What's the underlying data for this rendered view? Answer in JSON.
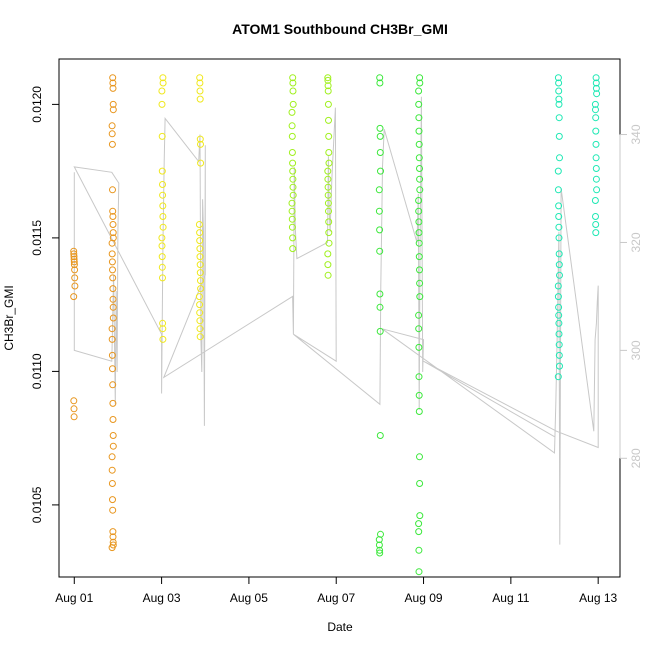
{
  "chart_data": {
    "type": "scatter",
    "title": "ATOM1 Southbound CH3Br_GMI",
    "xlabel": "Date",
    "ylabel": "CH3Br_GMI",
    "x_ticks": [
      {
        "day": 1,
        "label": "Aug 01"
      },
      {
        "day": 3,
        "label": "Aug 03"
      },
      {
        "day": 5,
        "label": "Aug 05"
      },
      {
        "day": 7,
        "label": "Aug 07"
      },
      {
        "day": 9,
        "label": "Aug 09"
      },
      {
        "day": 11,
        "label": "Aug 11"
      },
      {
        "day": 13,
        "label": "Aug 13"
      }
    ],
    "xlim": [
      0.65,
      13.5
    ],
    "y_ticks": [
      {
        "value": 0.0105,
        "label": "0.0105"
      },
      {
        "value": 0.011,
        "label": "0.0110"
      },
      {
        "value": 0.0115,
        "label": "0.0115"
      },
      {
        "value": 0.012,
        "label": "0.0120"
      }
    ],
    "ylim": [
      0.01023,
      0.01217
    ],
    "y2_ticks": [
      {
        "value": 280,
        "label": "280"
      },
      {
        "value": 300,
        "label": "300"
      },
      {
        "value": 320,
        "label": "320"
      },
      {
        "value": 340,
        "label": "340"
      }
    ],
    "y2lim": [
      258,
      354
    ],
    "grid": false,
    "series": [
      {
        "color": "#E8961E",
        "clusters": [
          {
            "x": 1.0,
            "values": [
              0.01145,
              0.01144,
              0.01143,
              0.01142,
              0.01141,
              0.0114,
              0.01138,
              0.01135,
              0.01132,
              0.01128,
              0.01089,
              0.01086,
              0.01083
            ]
          },
          {
            "x": 1.88,
            "values": [
              0.0121,
              0.01208,
              0.01206,
              0.012,
              0.01198,
              0.01192,
              0.01189,
              0.01185,
              0.01168,
              0.0116,
              0.01158,
              0.01155,
              0.01152,
              0.0115,
              0.01148,
              0.01144,
              0.01141,
              0.01138,
              0.01135,
              0.01131,
              0.01127,
              0.01124,
              0.0112,
              0.01116,
              0.01112,
              0.01106,
              0.01101,
              0.01095,
              0.01088,
              0.01082,
              0.01076,
              0.01072,
              0.01068,
              0.01063,
              0.01058,
              0.01052,
              0.01048,
              0.0104,
              0.01038,
              0.01036,
              0.01035,
              0.01034
            ]
          }
        ]
      },
      {
        "color": "#F0E81E",
        "clusters": [
          {
            "x": 3.02,
            "values": [
              0.0121,
              0.01208,
              0.01205,
              0.012,
              0.01188,
              0.01175,
              0.0117,
              0.01166,
              0.01162,
              0.01158,
              0.01154,
              0.0115,
              0.01147,
              0.01143,
              0.01139,
              0.01135,
              0.01118,
              0.01116,
              0.01112
            ]
          },
          {
            "x": 3.88,
            "values": [
              0.0121,
              0.01208,
              0.01205,
              0.01202,
              0.01187,
              0.01185,
              0.01178,
              0.01155,
              0.01152,
              0.01149,
              0.01146,
              0.01143,
              0.0114,
              0.01137,
              0.01134,
              0.01131,
              0.01128,
              0.01125,
              0.01122,
              0.01119,
              0.01116,
              0.01113
            ]
          }
        ]
      },
      {
        "color": "#A0F01E",
        "clusters": [
          {
            "x": 6.0,
            "values": [
              0.0121,
              0.01208,
              0.01205,
              0.012,
              0.01197,
              0.01192,
              0.01188,
              0.01182,
              0.01178,
              0.01175,
              0.01172,
              0.01169,
              0.01166,
              0.01163,
              0.0116,
              0.01157,
              0.01154,
              0.0115,
              0.01146
            ]
          },
          {
            "x": 6.82,
            "values": [
              0.0121,
              0.01209,
              0.01207,
              0.01205,
              0.012,
              0.01194,
              0.01188,
              0.01182,
              0.01178,
              0.01175,
              0.01172,
              0.01169,
              0.01166,
              0.01163,
              0.0116,
              0.01156,
              0.01152,
              0.01148,
              0.01144,
              0.0114,
              0.01136
            ]
          }
        ]
      },
      {
        "color": "#3CE83C",
        "clusters": [
          {
            "x": 8.0,
            "values": [
              0.0121,
              0.01208,
              0.01191,
              0.01188,
              0.01182,
              0.01175,
              0.01168,
              0.0116,
              0.01153,
              0.01145,
              0.01129,
              0.01124,
              0.01115,
              0.01076,
              0.01039,
              0.01037,
              0.01035,
              0.01033,
              0.01032
            ]
          },
          {
            "x": 8.9,
            "values": [
              0.0121,
              0.01208,
              0.01205,
              0.012,
              0.01195,
              0.0119,
              0.01185,
              0.0118,
              0.01176,
              0.01172,
              0.01168,
              0.01164,
              0.0116,
              0.01156,
              0.01152,
              0.01148,
              0.01143,
              0.01138,
              0.01133,
              0.01128,
              0.01121,
              0.01116,
              0.01109,
              0.01098,
              0.01091,
              0.01085,
              0.01068,
              0.01058,
              0.01046,
              0.01043,
              0.0104,
              0.01033,
              0.01025
            ]
          }
        ]
      },
      {
        "color": "#1EE8B4",
        "clusters": [
          {
            "x": 12.1,
            "values": [
              0.0121,
              0.01208,
              0.01205,
              0.01202,
              0.012,
              0.01195,
              0.01188,
              0.0118,
              0.01175,
              0.01168,
              0.01162,
              0.01158,
              0.01154,
              0.0115,
              0.01144,
              0.0114,
              0.01136,
              0.01132,
              0.01128,
              0.01124,
              0.01121,
              0.01118,
              0.01114,
              0.0111,
              0.01106,
              0.01102,
              0.01098
            ]
          },
          {
            "x": 12.95,
            "values": [
              0.0121,
              0.01208,
              0.01206,
              0.01204,
              0.012,
              0.01198,
              0.01195,
              0.0119,
              0.01185,
              0.0118,
              0.01176,
              0.01172,
              0.01168,
              0.01164,
              0.01158,
              0.01155,
              0.01152
            ]
          }
        ]
      }
    ],
    "altitude_line": {
      "color": "#c8c8c8",
      "axis": "right",
      "points": [
        [
          1.0,
          333
        ],
        [
          1.0,
          300
        ],
        [
          1.86,
          298
        ],
        [
          1.9,
          314
        ],
        [
          1.94,
          290
        ],
        [
          1.95,
          303
        ],
        [
          1.96,
          311
        ],
        [
          1.98,
          296
        ],
        [
          2.0,
          322
        ],
        [
          2.02,
          331
        ],
        [
          1.86,
          333
        ],
        [
          1.0,
          334
        ],
        [
          3.0,
          303
        ],
        [
          3.0,
          292
        ],
        [
          3.03,
          319
        ],
        [
          3.06,
          335
        ],
        [
          3.08,
          343
        ],
        [
          3.85,
          335
        ],
        [
          3.88,
          340
        ],
        [
          3.9,
          302
        ],
        [
          3.92,
          296
        ],
        [
          3.94,
          328
        ],
        [
          3.96,
          322
        ],
        [
          3.98,
          286
        ],
        [
          4.0,
          338
        ],
        [
          4.0,
          314
        ],
        [
          3.05,
          295
        ],
        [
          6.0,
          310
        ],
        [
          6.02,
          303
        ],
        [
          6.04,
          334
        ],
        [
          6.06,
          323
        ],
        [
          6.1,
          317
        ],
        [
          6.8,
          320
        ],
        [
          6.82,
          336
        ],
        [
          6.84,
          326
        ],
        [
          6.86,
          322
        ],
        [
          6.9,
          332
        ],
        [
          6.98,
          345
        ],
        [
          7.0,
          298
        ],
        [
          6.02,
          303
        ],
        [
          8.0,
          290
        ],
        [
          8.02,
          312
        ],
        [
          8.04,
          322
        ],
        [
          8.06,
          334
        ],
        [
          8.1,
          341
        ],
        [
          8.85,
          320
        ],
        [
          8.88,
          329
        ],
        [
          8.9,
          289
        ],
        [
          8.92,
          318
        ],
        [
          8.95,
          347
        ],
        [
          8.98,
          296
        ],
        [
          9.0,
          302
        ],
        [
          8.05,
          304
        ],
        [
          12.0,
          281
        ],
        [
          12.03,
          290
        ],
        [
          12.06,
          302
        ],
        [
          12.1,
          322
        ],
        [
          12.12,
          264
        ],
        [
          12.15,
          330
        ],
        [
          12.9,
          285
        ],
        [
          12.93,
          302
        ],
        [
          12.96,
          305
        ],
        [
          12.98,
          309
        ],
        [
          13.0,
          312
        ],
        [
          13.0,
          282
        ],
        [
          12.05,
          285
        ],
        [
          9.0,
          298
        ],
        [
          12.0,
          284
        ]
      ]
    }
  }
}
